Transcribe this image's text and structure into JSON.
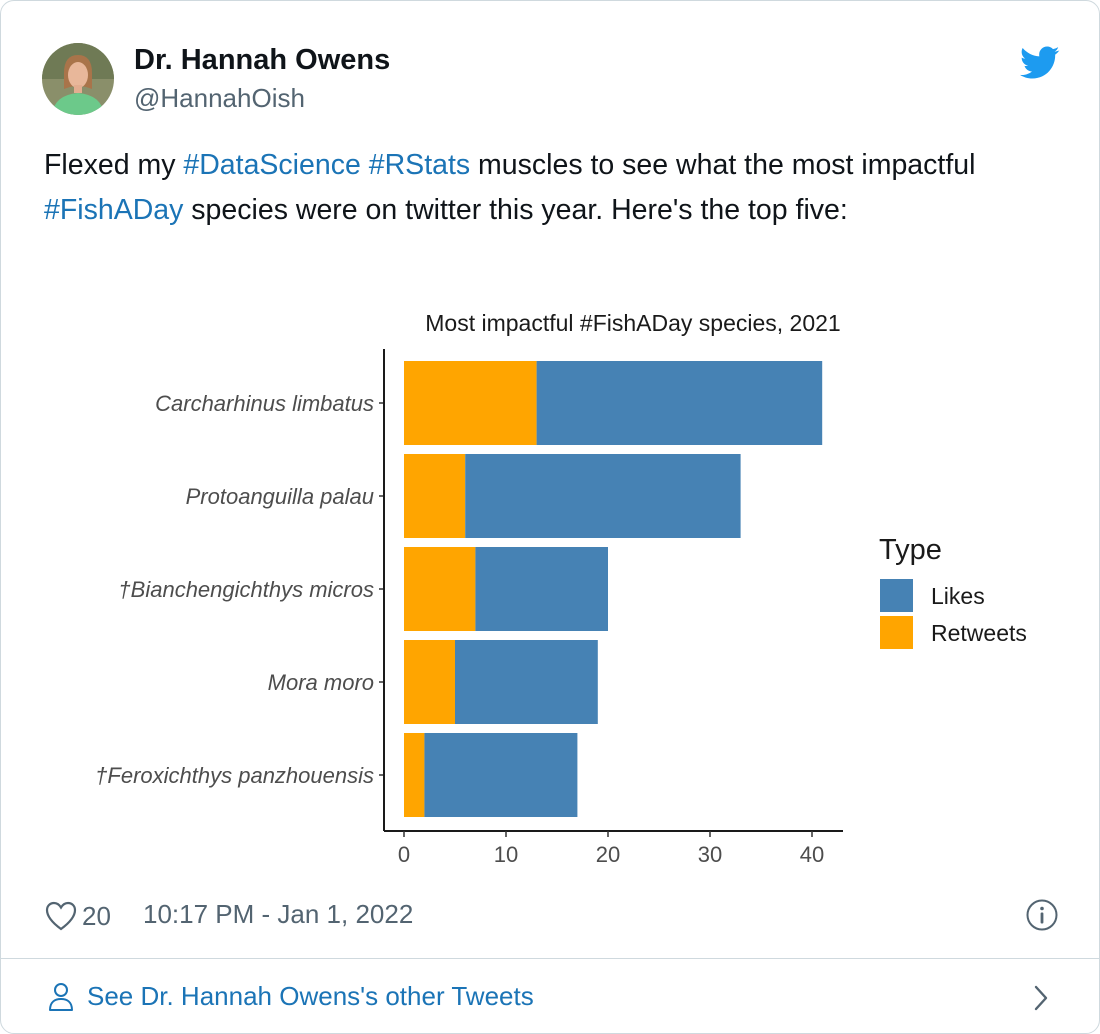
{
  "author": {
    "name": "Dr. Hannah Owens",
    "handle": "@HannahOish",
    "avatar_icon": "profile-photo"
  },
  "brand": {
    "icon": "twitter-bird-icon",
    "color": "#1d9bf0"
  },
  "tweet": {
    "segments": [
      {
        "text": "Flexed my ",
        "hashtag": false
      },
      {
        "text": "#DataScience",
        "hashtag": true
      },
      {
        "text": " ",
        "hashtag": false
      },
      {
        "text": "#RStats",
        "hashtag": true
      },
      {
        "text": " muscles to see what the most impactful ",
        "hashtag": false
      },
      {
        "text": "#FishADay",
        "hashtag": true
      },
      {
        "text": " species were on twitter this year. Here's the top five:",
        "hashtag": false
      }
    ],
    "hashtag_color": "#1b74b6"
  },
  "chart_data": {
    "type": "bar",
    "orientation": "horizontal",
    "stacked": true,
    "title": "Most impactful #FishADay species, 2021",
    "categories": [
      "Carcharhinus limbatus",
      "Protoanguilla palau",
      "†Bianchengichthys micros",
      "Mora moro",
      "†Feroxichthys panzhouensis"
    ],
    "series": [
      {
        "name": "Retweets",
        "color": "#FFA500",
        "values": [
          13,
          6,
          7,
          5,
          2
        ]
      },
      {
        "name": "Likes",
        "color": "#4682B4",
        "values": [
          28,
          27,
          13,
          14,
          15
        ]
      }
    ],
    "xlim": [
      0,
      43
    ],
    "xticks": [
      0,
      10,
      20,
      30,
      40
    ],
    "xlabel": "",
    "ylabel": "",
    "grid": false,
    "legend": {
      "title": "Type",
      "placement": "right",
      "entries": [
        {
          "label": "Likes",
          "color": "#4682B4"
        },
        {
          "label": "Retweets",
          "color": "#FFA500"
        }
      ]
    }
  },
  "footer": {
    "like_icon": "heart-icon",
    "like_count": "20",
    "timestamp": "10:17 PM - Jan 1, 2022",
    "info_icon": "info-icon",
    "other_tweets_icon": "person-icon",
    "other_tweets_label": "See Dr. Hannah Owens's other Tweets",
    "chevron_icon": "chevron-right-icon"
  }
}
